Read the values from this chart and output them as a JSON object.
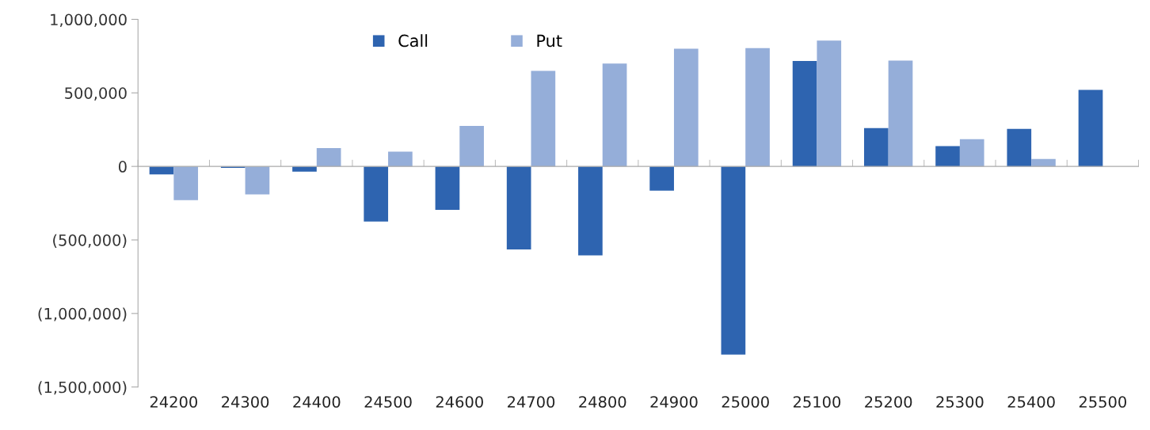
{
  "chart_data": {
    "type": "bar",
    "categories": [
      "24200",
      "24300",
      "24400",
      "24500",
      "24600",
      "24700",
      "24800",
      "24900",
      "25000",
      "25100",
      "25200",
      "25300",
      "25400",
      "25500"
    ],
    "series": [
      {
        "name": "Call",
        "color": "#2e64b0",
        "values": [
          -55000,
          -10000,
          -35000,
          -375000,
          -295000,
          -565000,
          -605000,
          -165000,
          -1280000,
          717000,
          260000,
          138000,
          255000,
          520000
        ]
      },
      {
        "name": "Put",
        "color": "#95aed9",
        "values": [
          -230000,
          -190000,
          125000,
          100000,
          275000,
          650000,
          700000,
          800000,
          805000,
          855000,
          720000,
          185000,
          50000,
          null
        ]
      }
    ],
    "ylim": [
      -1500000,
      1000000
    ],
    "yticks": [
      {
        "value": -1500000,
        "label": "(1,500,000)"
      },
      {
        "value": -1000000,
        "label": "(1,000,000)"
      },
      {
        "value": -500000,
        "label": "(500,000)"
      },
      0,
      {
        "value": 500000,
        "label": "500,000"
      },
      {
        "value": 1000000,
        "label": "1,000,000"
      }
    ],
    "legend": "top"
  }
}
